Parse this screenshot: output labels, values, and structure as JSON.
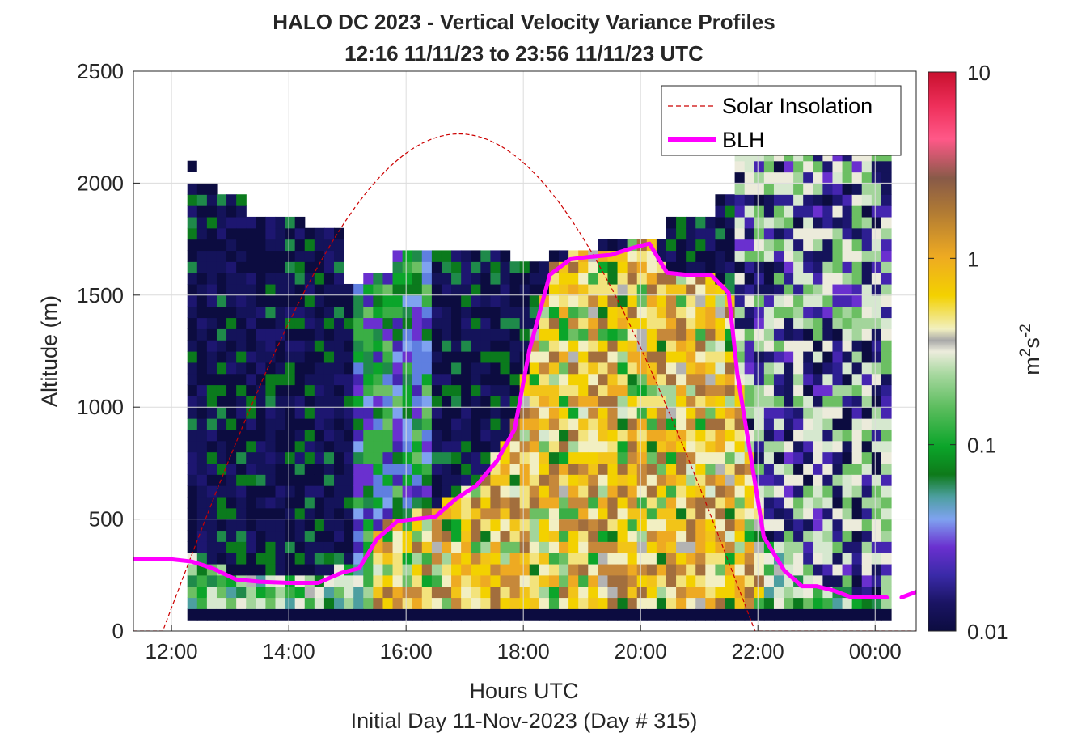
{
  "chart_data": {
    "type": "heatmap",
    "title": "HALO DC 2023 - Vertical Velocity Variance Profiles",
    "subtitle": "12:16 11/11/23 to 23:56 11/11/23  UTC",
    "xlabel": "Hours UTC",
    "xlabel2": "Initial Day 11-Nov-2023 (Day # 315)",
    "ylabel": "Altitude (m)",
    "x_ticks": [
      "12:00",
      "14:00",
      "16:00",
      "18:00",
      "20:00",
      "22:00",
      "00:00"
    ],
    "y_ticks": [
      "0",
      "500",
      "1000",
      "1500",
      "2000",
      "2500"
    ],
    "xlim_hours": [
      11.35,
      24.7
    ],
    "ylim": [
      0,
      2500
    ],
    "grid": true,
    "legend_location": "top-right",
    "legend": {
      "solar": "Solar Insolation",
      "blh": "BLH"
    },
    "colorbar": {
      "label_base": "m",
      "label_sup1": "2",
      "label_mid": "s",
      "label_sup2": "-2",
      "scale": "log",
      "ticks": [
        "0.01",
        "0.1",
        "1",
        "10"
      ],
      "range": [
        0.01,
        10
      ]
    },
    "colors": {
      "solar": "#cc0000",
      "blh": "#ff00ff",
      "background": "#ffffff"
    },
    "solar_insolation": {
      "hours": [
        11.35,
        11.85,
        12.5,
        13.5,
        14.5,
        15.5,
        16.5,
        16.9,
        17.5,
        18.5,
        19.5,
        20.5,
        21.5,
        21.95,
        24.7
      ],
      "altitude": [
        0,
        0,
        580,
        1230,
        1720,
        2040,
        2200,
        2220,
        2190,
        1960,
        1530,
        920,
        300,
        0,
        0
      ]
    },
    "blh": {
      "segments": [
        {
          "hours": [
            11.35,
            12.0,
            12.35,
            12.7,
            13.1,
            13.5,
            14.0,
            14.5,
            14.9,
            15.2,
            15.5,
            15.85,
            16.15,
            16.5,
            16.85,
            17.2,
            17.55,
            17.85,
            18.1,
            18.45,
            18.8,
            19.1,
            19.5,
            19.85,
            20.15,
            20.45,
            20.8,
            21.0,
            21.2,
            21.5,
            21.65,
            22.1,
            22.45,
            22.75,
            23.0,
            23.3,
            23.6,
            23.9,
            24.2
          ],
          "altitude": [
            320,
            320,
            310,
            280,
            230,
            220,
            215,
            215,
            260,
            280,
            410,
            490,
            500,
            510,
            590,
            650,
            760,
            900,
            1250,
            1590,
            1660,
            1670,
            1680,
            1710,
            1730,
            1600,
            1590,
            1590,
            1590,
            1510,
            1150,
            420,
            270,
            200,
            200,
            180,
            150,
            150,
            150
          ]
        },
        {
          "hours": [
            24.45,
            24.7
          ],
          "altitude": [
            150,
            175
          ]
        }
      ]
    },
    "variance_heatmap": {
      "x_start_hour": 12.27,
      "bin_hours": 0.1667,
      "alt_bottom": 100,
      "bin_m": 50,
      "units": "m^2 s^-2"
    }
  }
}
